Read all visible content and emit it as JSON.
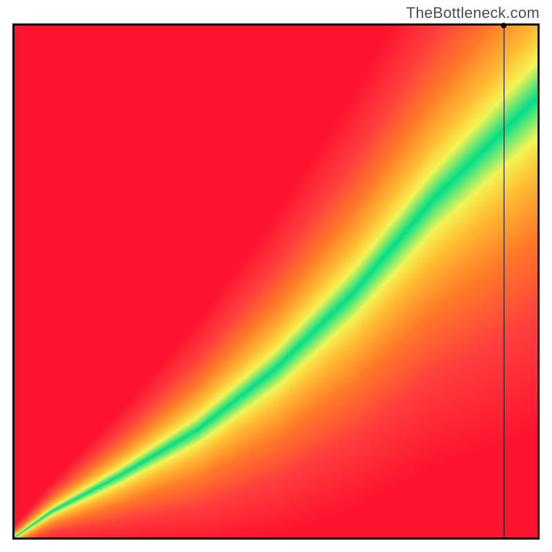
{
  "watermark": {
    "text": "TheBottleneck.com",
    "color": "#4a4a4a",
    "fontsize": 22
  },
  "plot": {
    "type": "heatmap",
    "grid": {
      "nx": 200,
      "ny": 200
    },
    "xlim": [
      0,
      1
    ],
    "ylim": [
      0,
      1
    ],
    "background_color": "#ffffff",
    "border_color": "#000000",
    "border_width": 3,
    "value_fn": {
      "desc": "v(x,y) = |y - ideal(x)| / band(x); band narrows at small x and widens at large x; ideal curve has a 7:10 initial slope up to x~0.07 then passes through (0.5,0.33) and (1.0,0.86)",
      "ideal_points": [
        [
          0.0,
          0.0
        ],
        [
          0.07,
          0.05
        ],
        [
          0.2,
          0.12
        ],
        [
          0.35,
          0.21
        ],
        [
          0.5,
          0.33
        ],
        [
          0.65,
          0.48
        ],
        [
          0.8,
          0.66
        ],
        [
          1.0,
          0.86
        ]
      ],
      "band_points": [
        [
          0.0,
          0.004
        ],
        [
          0.1,
          0.012
        ],
        [
          0.25,
          0.025
        ],
        [
          0.5,
          0.05
        ],
        [
          0.75,
          0.075
        ],
        [
          1.0,
          0.1
        ]
      ]
    },
    "colormap": {
      "name": "green-yellow-red",
      "stops": [
        {
          "v": 0.0,
          "color": "#00df8a"
        },
        {
          "v": 0.7,
          "color": "#f3f455"
        },
        {
          "v": 1.4,
          "color": "#ffbb33"
        },
        {
          "v": 2.5,
          "color": "#ff7a28"
        },
        {
          "v": 4.0,
          "color": "#ff3f3d"
        },
        {
          "v": 6.0,
          "color": "#ff1430"
        }
      ]
    },
    "marker": {
      "x": 0.935,
      "y_top": 1.0,
      "line_color": "#000000",
      "line_width": 1,
      "dot_color": "#000000",
      "dot_radius": 4
    }
  }
}
